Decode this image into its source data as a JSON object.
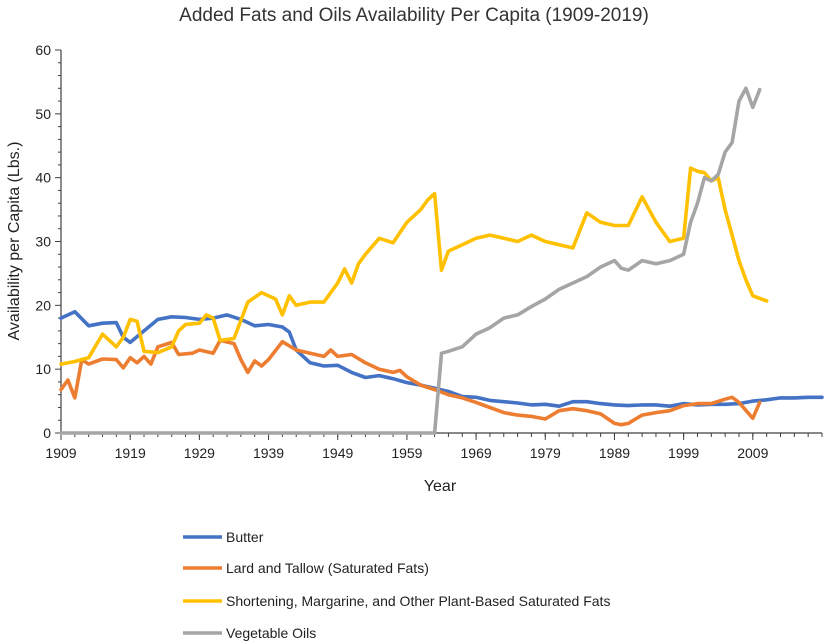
{
  "chart_data": {
    "type": "line",
    "title": "Added  Fats and Oils Availability Per Capita  (1909-2019)",
    "xlabel": "Year",
    "ylabel": "Availability per Capita (Lbs.)",
    "xlim": [
      1909,
      2019
    ],
    "ylim": [
      0,
      60
    ],
    "xticks": [
      1909,
      1919,
      1929,
      1939,
      1949,
      1959,
      1969,
      1979,
      1989,
      1999,
      2009
    ],
    "yticks": [
      0,
      10,
      20,
      30,
      40,
      50,
      60
    ],
    "legend_position": "bottom",
    "series": [
      {
        "name": "Butter",
        "color": "#4472C4",
        "points": [
          [
            1909,
            18
          ],
          [
            1911,
            19
          ],
          [
            1913,
            16.8
          ],
          [
            1915,
            17.2
          ],
          [
            1917,
            17.3
          ],
          [
            1918,
            15
          ],
          [
            1919,
            14.2
          ],
          [
            1921,
            16
          ],
          [
            1923,
            17.8
          ],
          [
            1925,
            18.2
          ],
          [
            1927,
            18.1
          ],
          [
            1929,
            17.8
          ],
          [
            1931,
            18
          ],
          [
            1933,
            18.5
          ],
          [
            1935,
            17.8
          ],
          [
            1937,
            16.8
          ],
          [
            1939,
            17
          ],
          [
            1941,
            16.6
          ],
          [
            1942,
            15.8
          ],
          [
            1943,
            13
          ],
          [
            1945,
            11
          ],
          [
            1947,
            10.5
          ],
          [
            1949,
            10.6
          ],
          [
            1951,
            9.5
          ],
          [
            1953,
            8.7
          ],
          [
            1955,
            9
          ],
          [
            1957,
            8.5
          ],
          [
            1959,
            7.9
          ],
          [
            1961,
            7.5
          ],
          [
            1963,
            7
          ],
          [
            1965,
            6.5
          ],
          [
            1967,
            5.7
          ],
          [
            1969,
            5.6
          ],
          [
            1971,
            5.1
          ],
          [
            1973,
            4.9
          ],
          [
            1975,
            4.7
          ],
          [
            1977,
            4.4
          ],
          [
            1979,
            4.5
          ],
          [
            1981,
            4.2
          ],
          [
            1983,
            4.9
          ],
          [
            1985,
            4.9
          ],
          [
            1987,
            4.6
          ],
          [
            1989,
            4.4
          ],
          [
            1991,
            4.3
          ],
          [
            1993,
            4.4
          ],
          [
            1995,
            4.4
          ],
          [
            1997,
            4.2
          ],
          [
            1999,
            4.6
          ],
          [
            2001,
            4.4
          ],
          [
            2003,
            4.5
          ],
          [
            2005,
            4.5
          ],
          [
            2007,
            4.6
          ],
          [
            2009,
            5.0
          ],
          [
            2011,
            5.2
          ],
          [
            2013,
            5.5
          ],
          [
            2015,
            5.5
          ],
          [
            2017,
            5.6
          ],
          [
            2019,
            5.6
          ]
        ]
      },
      {
        "name": "Lard and Tallow (Saturated Fats)",
        "color": "#ED7D31",
        "points": [
          [
            1909,
            6.8
          ],
          [
            1910,
            8.3
          ],
          [
            1911,
            5.5
          ],
          [
            1912,
            11.5
          ],
          [
            1913,
            10.8
          ],
          [
            1915,
            11.6
          ],
          [
            1917,
            11.5
          ],
          [
            1918,
            10.2
          ],
          [
            1919,
            11.8
          ],
          [
            1920,
            11
          ],
          [
            1921,
            12
          ],
          [
            1922,
            10.8
          ],
          [
            1923,
            13.5
          ],
          [
            1925,
            14.2
          ],
          [
            1926,
            12.3
          ],
          [
            1928,
            12.5
          ],
          [
            1929,
            13
          ],
          [
            1931,
            12.5
          ],
          [
            1932,
            14.5
          ],
          [
            1934,
            14
          ],
          [
            1935,
            11.5
          ],
          [
            1936,
            9.5
          ],
          [
            1937,
            11.3
          ],
          [
            1938,
            10.5
          ],
          [
            1939,
            11.5
          ],
          [
            1941,
            14.3
          ],
          [
            1943,
            13
          ],
          [
            1945,
            12.5
          ],
          [
            1947,
            12
          ],
          [
            1948,
            13
          ],
          [
            1949,
            12
          ],
          [
            1951,
            12.3
          ],
          [
            1953,
            11
          ],
          [
            1955,
            10
          ],
          [
            1957,
            9.5
          ],
          [
            1958,
            9.8
          ],
          [
            1959,
            8.8
          ],
          [
            1961,
            7.5
          ],
          [
            1963,
            6.8
          ],
          [
            1965,
            6
          ],
          [
            1967,
            5.5
          ],
          [
            1969,
            4.8
          ],
          [
            1971,
            4
          ],
          [
            1973,
            3.2
          ],
          [
            1975,
            2.8
          ],
          [
            1977,
            2.6
          ],
          [
            1979,
            2.2
          ],
          [
            1981,
            3.5
          ],
          [
            1983,
            3.8
          ],
          [
            1985,
            3.5
          ],
          [
            1987,
            3
          ],
          [
            1989,
            1.5
          ],
          [
            1990,
            1.3
          ],
          [
            1991,
            1.5
          ],
          [
            1993,
            2.8
          ],
          [
            1995,
            3.2
          ],
          [
            1997,
            3.5
          ],
          [
            1999,
            4.3
          ],
          [
            2001,
            4.6
          ],
          [
            2003,
            4.6
          ],
          [
            2005,
            5.3
          ],
          [
            2006,
            5.6
          ],
          [
            2007,
            4.8
          ],
          [
            2009,
            2.3
          ],
          [
            2010,
            4.8
          ]
        ]
      },
      {
        "name": "Shortening, Margarine, and Other Plant-Based Saturated Fats",
        "color": "#FFC000",
        "points": [
          [
            1909,
            10.8
          ],
          [
            1911,
            11.2
          ],
          [
            1913,
            11.8
          ],
          [
            1915,
            15.5
          ],
          [
            1917,
            13.5
          ],
          [
            1918,
            15
          ],
          [
            1919,
            17.8
          ],
          [
            1920,
            17.5
          ],
          [
            1921,
            12.8
          ],
          [
            1923,
            12.6
          ],
          [
            1925,
            13.5
          ],
          [
            1926,
            16
          ],
          [
            1927,
            17
          ],
          [
            1929,
            17.2
          ],
          [
            1930,
            18.5
          ],
          [
            1931,
            18
          ],
          [
            1932,
            14.5
          ],
          [
            1934,
            14.8
          ],
          [
            1936,
            20.5
          ],
          [
            1938,
            22
          ],
          [
            1940,
            21
          ],
          [
            1941,
            18.5
          ],
          [
            1942,
            21.5
          ],
          [
            1943,
            20
          ],
          [
            1945,
            20.5
          ],
          [
            1947,
            20.5
          ],
          [
            1949,
            23.5
          ],
          [
            1950,
            25.7
          ],
          [
            1951,
            23.5
          ],
          [
            1952,
            26.5
          ],
          [
            1953,
            28
          ],
          [
            1955,
            30.5
          ],
          [
            1957,
            29.8
          ],
          [
            1959,
            33
          ],
          [
            1961,
            35
          ],
          [
            1962,
            36.5
          ],
          [
            1963,
            37.5
          ],
          [
            1964,
            25.5
          ],
          [
            1965,
            28.5
          ],
          [
            1967,
            29.5
          ],
          [
            1969,
            30.5
          ],
          [
            1971,
            31
          ],
          [
            1973,
            30.5
          ],
          [
            1975,
            30
          ],
          [
            1977,
            31
          ],
          [
            1979,
            30
          ],
          [
            1981,
            29.5
          ],
          [
            1983,
            29
          ],
          [
            1985,
            34.5
          ],
          [
            1987,
            33
          ],
          [
            1989,
            32.5
          ],
          [
            1991,
            32.5
          ],
          [
            1993,
            37
          ],
          [
            1995,
            33
          ],
          [
            1997,
            30
          ],
          [
            1999,
            30.5
          ],
          [
            2000,
            41.5
          ],
          [
            2001,
            41
          ],
          [
            2002,
            40.8
          ],
          [
            2003,
            39.5
          ],
          [
            2004,
            40
          ],
          [
            2005,
            35
          ],
          [
            2006,
            31
          ],
          [
            2007,
            27
          ],
          [
            2008,
            24
          ],
          [
            2009,
            21.5
          ],
          [
            2011,
            20.7
          ]
        ]
      },
      {
        "name": "Vegetable Oils",
        "color": "#A5A5A5",
        "points": [
          [
            1909,
            0
          ],
          [
            1963,
            0
          ],
          [
            1964,
            12.5
          ],
          [
            1965,
            12.8
          ],
          [
            1967,
            13.5
          ],
          [
            1969,
            15.5
          ],
          [
            1971,
            16.5
          ],
          [
            1973,
            18
          ],
          [
            1975,
            18.5
          ],
          [
            1977,
            19.8
          ],
          [
            1979,
            21
          ],
          [
            1981,
            22.5
          ],
          [
            1983,
            23.5
          ],
          [
            1985,
            24.5
          ],
          [
            1987,
            26
          ],
          [
            1989,
            27
          ],
          [
            1990,
            25.8
          ],
          [
            1991,
            25.5
          ],
          [
            1993,
            27
          ],
          [
            1995,
            26.5
          ],
          [
            1997,
            27
          ],
          [
            1999,
            28
          ],
          [
            2000,
            33
          ],
          [
            2001,
            36
          ],
          [
            2002,
            40
          ],
          [
            2003,
            39.5
          ],
          [
            2004,
            40.5
          ],
          [
            2005,
            44
          ],
          [
            2006,
            45.5
          ],
          [
            2007,
            52
          ],
          [
            2008,
            54
          ],
          [
            2009,
            51
          ],
          [
            2010,
            53.8
          ]
        ]
      }
    ]
  }
}
